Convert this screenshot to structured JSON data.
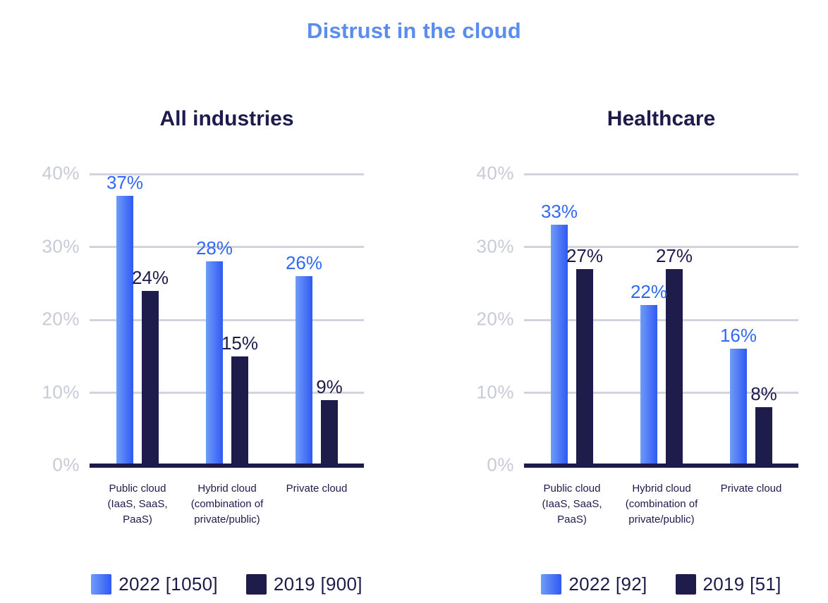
{
  "header": {
    "title": "Distrust in the cloud"
  },
  "colors": {
    "title_blue": "#5B8CEF",
    "bar_2022_start": "#6F9CF8",
    "bar_2022_end": "#3059F4",
    "bar_2019": "#1D1C4A",
    "value_2022": "#3168F4",
    "text_navy": "#1C1B4B",
    "gridline": "#D2D3DC",
    "tick_label": "#C8CAD7"
  },
  "chart_data": [
    {
      "type": "bar",
      "title": "All industries",
      "categories": [
        [
          "Public cloud",
          "(IaaS, SaaS,",
          "PaaS)"
        ],
        [
          "Hybrid cloud",
          "(combination of",
          "private/public)"
        ],
        [
          "Private cloud"
        ]
      ],
      "series": [
        {
          "name": "2022 [1050]",
          "key": "2022",
          "values": [
            37,
            28,
            26
          ],
          "value_labels": [
            "37%",
            "28%",
            "26%"
          ]
        },
        {
          "name": "2019 [900]",
          "key": "2019",
          "values": [
            24,
            15,
            9
          ],
          "value_labels": [
            "24%",
            "15%",
            "9%"
          ]
        }
      ],
      "ylim": [
        0,
        40
      ],
      "yticks": [
        {
          "value": 0,
          "label": "0%"
        },
        {
          "value": 10,
          "label": "10%"
        },
        {
          "value": 20,
          "label": "20%"
        },
        {
          "value": 30,
          "label": "30%"
        },
        {
          "value": 40,
          "label": "40%"
        }
      ],
      "grid": true,
      "legend_position": "bottom"
    },
    {
      "type": "bar",
      "title": "Healthcare",
      "categories": [
        [
          "Public cloud",
          "(IaaS, SaaS,",
          "PaaS)"
        ],
        [
          "Hybrid cloud",
          "(combination of",
          "private/public)"
        ],
        [
          "Private cloud"
        ]
      ],
      "series": [
        {
          "name": "2022 [92]",
          "key": "2022",
          "values": [
            33,
            22,
            16
          ],
          "value_labels": [
            "33%",
            "22%",
            "16%"
          ]
        },
        {
          "name": "2019 [51]",
          "key": "2019",
          "values": [
            27,
            27,
            8
          ],
          "value_labels": [
            "27%",
            "27%",
            "8%"
          ]
        }
      ],
      "ylim": [
        0,
        40
      ],
      "yticks": [
        {
          "value": 0,
          "label": "0%"
        },
        {
          "value": 10,
          "label": "10%"
        },
        {
          "value": 20,
          "label": "20%"
        },
        {
          "value": 30,
          "label": "30%"
        },
        {
          "value": 40,
          "label": "40%"
        }
      ],
      "grid": true,
      "legend_position": "bottom"
    }
  ]
}
